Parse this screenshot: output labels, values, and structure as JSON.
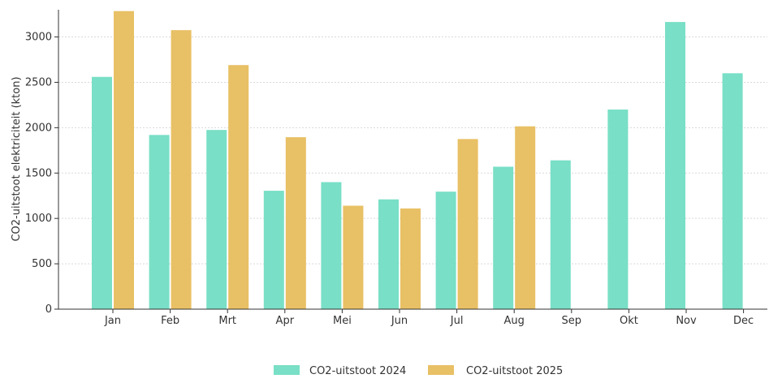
{
  "chart_data": {
    "type": "bar",
    "ylabel": "CO2-uitstoot elektriciteit (kton)",
    "xlabel": "",
    "ylim": [
      0,
      3300
    ],
    "yticks": [
      0,
      500,
      1000,
      1500,
      2000,
      2500,
      3000
    ],
    "grid": true,
    "legend_position": "bottom",
    "categories": [
      "Jan",
      "Feb",
      "Mrt",
      "Apr",
      "Mei",
      "Jun",
      "Jul",
      "Aug",
      "Sep",
      "Okt",
      "Nov",
      "Dec"
    ],
    "series": [
      {
        "name": "CO2-uitstoot 2024",
        "color": "#79DFC6",
        "values": [
          2560,
          1920,
          1975,
          1305,
          1400,
          1210,
          1295,
          1570,
          1640,
          2200,
          3165,
          2600
        ]
      },
      {
        "name": "CO2-uitstoot 2025",
        "color": "#E8C065",
        "values": [
          3285,
          3075,
          2690,
          1895,
          1140,
          1110,
          1875,
          2015,
          null,
          null,
          null,
          null
        ]
      }
    ]
  }
}
